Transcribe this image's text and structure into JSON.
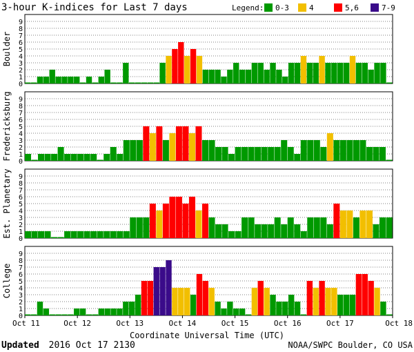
{
  "chart_data": {
    "type": "bar",
    "title": "3-hour K-indices for Last 7 days",
    "legend": {
      "title": "Legend:",
      "items": [
        {
          "label": "0-3",
          "color": "#009900"
        },
        {
          "label": "4",
          "color": "#f2bf00"
        },
        {
          "label": "5,6",
          "color": "#ff0000"
        },
        {
          "label": "7-9",
          "color": "#3a0b8a"
        }
      ]
    },
    "yticks": [
      "0",
      "1",
      "2",
      "3",
      "4",
      "5",
      "6",
      "7",
      "8",
      "9"
    ],
    "ylim": [
      0,
      9
    ],
    "x_tick_labels": [
      "Oct 11",
      "Oct 12",
      "Oct 13",
      "Oct 14",
      "Oct 15",
      "Oct 16",
      "Oct 17",
      "Oct 18"
    ],
    "xlabel": "Coordinate Universal Time (UTC)",
    "panels": [
      {
        "name": "Boulder",
        "values": [
          0,
          0,
          1,
          1,
          2,
          1,
          1,
          1,
          1,
          0,
          1,
          0,
          1,
          2,
          0,
          0,
          3,
          0,
          0,
          0,
          0,
          0,
          3,
          4,
          5,
          6,
          4,
          5,
          4,
          2,
          2,
          2,
          1,
          2,
          3,
          2,
          2,
          3,
          3,
          2,
          3,
          2,
          1,
          3,
          3,
          4,
          3,
          3,
          4,
          3,
          3,
          3,
          3,
          4,
          3,
          3,
          2,
          3,
          3,
          0
        ]
      },
      {
        "name": "Fredericksburg",
        "values": [
          1,
          0,
          1,
          1,
          1,
          2,
          1,
          1,
          1,
          1,
          1,
          0,
          1,
          2,
          1,
          3,
          3,
          3,
          5,
          4,
          5,
          3,
          4,
          5,
          5,
          4,
          5,
          3,
          3,
          2,
          2,
          1,
          2,
          2,
          2,
          2,
          2,
          2,
          2,
          3,
          2,
          1,
          3,
          3,
          3,
          2,
          4,
          3,
          3,
          3,
          3,
          3,
          2,
          2,
          2,
          0
        ]
      },
      {
        "name": "Est. Planetary",
        "values": [
          1,
          1,
          1,
          1,
          0,
          0,
          1,
          1,
          1,
          1,
          1,
          1,
          1,
          1,
          1,
          1,
          3,
          3,
          3,
          5,
          4,
          5,
          6,
          6,
          5,
          6,
          4,
          5,
          3,
          2,
          2,
          1,
          1,
          3,
          3,
          2,
          2,
          2,
          3,
          2,
          3,
          2,
          1,
          3,
          3,
          3,
          2,
          5,
          4,
          4,
          3,
          4,
          4,
          2,
          3,
          3
        ]
      },
      {
        "name": "College",
        "values": [
          0,
          0,
          2,
          1,
          0,
          0,
          0,
          0,
          1,
          1,
          0,
          0,
          1,
          1,
          1,
          1,
          2,
          2,
          3,
          5,
          5,
          7,
          7,
          8,
          4,
          4,
          4,
          3,
          6,
          5,
          4,
          2,
          1,
          2,
          1,
          1,
          0,
          4,
          5,
          4,
          3,
          2,
          2,
          3,
          2,
          0,
          5,
          4,
          5,
          4,
          4,
          3,
          3,
          3,
          6,
          6,
          5,
          4,
          2,
          0
        ]
      }
    ]
  },
  "footer": {
    "updated_label": "Updated",
    "updated_value": "2016 Oct 17 2130",
    "credit": "NOAA/SWPC Boulder, CO USA"
  }
}
